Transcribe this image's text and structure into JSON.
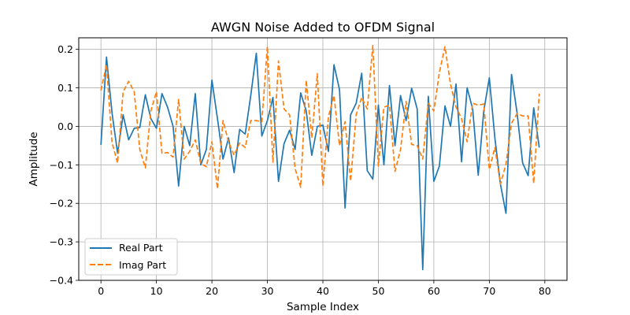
{
  "chart_data": {
    "type": "line",
    "title": "AWGN Noise Added to OFDM Signal",
    "xlabel": "Sample Index",
    "ylabel": "Amplitude",
    "xlim": [
      -4,
      84
    ],
    "ylim": [
      -0.4,
      0.23
    ],
    "xticks": [
      0,
      10,
      20,
      30,
      40,
      50,
      60,
      70,
      80
    ],
    "yticks": [
      -0.4,
      -0.3,
      -0.2,
      -0.1,
      0.0,
      0.1,
      0.2
    ],
    "ytick_labels": [
      "−0.4",
      "−0.3",
      "−0.2",
      "−0.1",
      "0.0",
      "0.1",
      "0.2"
    ],
    "grid": true,
    "legend_position": "lower-left",
    "series": [
      {
        "name": "Real Part",
        "color": "#1f77b4",
        "style": "solid",
        "x": [
          0,
          1,
          2,
          3,
          4,
          5,
          6,
          7,
          8,
          9,
          10,
          11,
          12,
          13,
          14,
          15,
          16,
          17,
          18,
          19,
          20,
          21,
          22,
          23,
          24,
          25,
          26,
          27,
          28,
          29,
          30,
          31,
          32,
          33,
          34,
          35,
          36,
          37,
          38,
          39,
          40,
          41,
          42,
          43,
          44,
          45,
          46,
          47,
          48,
          49,
          50,
          51,
          52,
          53,
          54,
          55,
          56,
          57,
          58,
          59,
          60,
          61,
          62,
          63,
          64,
          65,
          66,
          67,
          68,
          69,
          70,
          71,
          72,
          73,
          74,
          75,
          76,
          77,
          78,
          79
        ],
        "values": [
          -0.048,
          0.18,
          0.035,
          -0.07,
          0.03,
          -0.035,
          -0.005,
          -0.003,
          0.082,
          0.02,
          -0.005,
          0.085,
          0.05,
          0.0,
          -0.155,
          0.0,
          -0.05,
          0.085,
          -0.1,
          -0.06,
          0.12,
          0.02,
          -0.085,
          -0.03,
          -0.12,
          -0.008,
          -0.02,
          0.08,
          0.19,
          -0.025,
          0.015,
          0.075,
          -0.143,
          -0.045,
          -0.01,
          -0.06,
          0.087,
          0.04,
          -0.075,
          -0.0,
          0.003,
          -0.065,
          0.16,
          0.095,
          -0.212,
          0.03,
          0.06,
          0.138,
          -0.115,
          -0.137,
          0.055,
          -0.1,
          0.106,
          -0.05,
          0.08,
          0.015,
          0.099,
          0.045,
          -0.372,
          0.078,
          -0.143,
          -0.103,
          0.053,
          0.0,
          0.11,
          -0.092,
          0.1,
          0.045,
          -0.127,
          0.04,
          0.126,
          -0.03,
          -0.15,
          -0.226,
          0.135,
          0.035,
          -0.095,
          -0.128,
          0.048,
          -0.055
        ]
      },
      {
        "name": "Imag Part",
        "color": "#ff7f0e",
        "style": "dashed",
        "x": [
          0,
          1,
          2,
          3,
          4,
          5,
          6,
          7,
          8,
          9,
          10,
          11,
          12,
          13,
          14,
          15,
          16,
          17,
          18,
          19,
          20,
          21,
          22,
          23,
          24,
          25,
          26,
          27,
          28,
          29,
          30,
          31,
          32,
          33,
          34,
          35,
          36,
          37,
          38,
          39,
          40,
          41,
          42,
          43,
          44,
          45,
          46,
          47,
          48,
          49,
          50,
          51,
          52,
          53,
          54,
          55,
          56,
          57,
          58,
          59,
          60,
          61,
          62,
          63,
          64,
          65,
          66,
          67,
          68,
          69,
          70,
          71,
          72,
          73,
          74,
          75,
          76,
          77,
          78,
          79
        ],
        "values": [
          0.093,
          0.16,
          -0.042,
          -0.095,
          0.09,
          0.117,
          0.09,
          -0.06,
          -0.108,
          0.04,
          0.09,
          -0.07,
          -0.068,
          -0.08,
          0.07,
          -0.085,
          -0.065,
          -0.035,
          -0.097,
          -0.105,
          -0.04,
          -0.162,
          0.015,
          -0.04,
          -0.075,
          -0.043,
          -0.055,
          0.015,
          0.015,
          0.012,
          0.207,
          -0.093,
          0.17,
          0.045,
          0.03,
          -0.11,
          -0.158,
          0.12,
          -0.03,
          0.137,
          -0.155,
          0.025,
          0.08,
          -0.05,
          0.012,
          -0.142,
          0.03,
          0.075,
          0.045,
          0.21,
          -0.103,
          0.05,
          0.055,
          -0.117,
          -0.06,
          0.065,
          -0.047,
          -0.05,
          -0.085,
          0.06,
          0.04,
          0.14,
          0.207,
          0.11,
          0.05,
          0.02,
          -0.04,
          0.06,
          0.055,
          0.058,
          -0.112,
          -0.055,
          -0.15,
          -0.098,
          0.008,
          0.033,
          0.027,
          0.027,
          -0.148,
          0.085
        ]
      }
    ]
  }
}
